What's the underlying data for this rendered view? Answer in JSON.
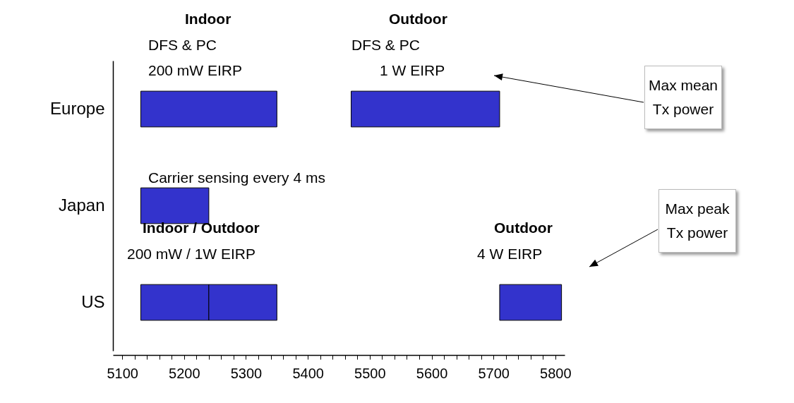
{
  "chart_data": {
    "type": "bar",
    "orientation": "horizontal",
    "categories": [
      "Europe",
      "Japan",
      "US"
    ],
    "series": [
      {
        "color": "#3333cc",
        "base": [
          5130,
          5130,
          5130
        ],
        "values": [
          220,
          110,
          110
        ]
      },
      {
        "color": "#3333cc",
        "base": [
          5470,
          null,
          5240
        ],
        "values": [
          240,
          null,
          110
        ]
      },
      {
        "color": "#3333cc",
        "base": [
          null,
          null,
          5710
        ],
        "values": [
          null,
          null,
          100
        ]
      }
    ],
    "xlim": [
      5085,
      5815
    ],
    "xticks": [
      5100,
      {
        "value": 5120,
        "label": null
      },
      {
        "value": 5140,
        "label": null
      },
      {
        "value": 5160,
        "label": null
      },
      {
        "value": 5180,
        "label": null
      },
      5200,
      {
        "value": 5220,
        "label": null
      },
      {
        "value": 5240,
        "label": null
      },
      {
        "value": 5260,
        "label": null
      },
      {
        "value": 5280,
        "label": null
      },
      5300,
      {
        "value": 5320,
        "label": null
      },
      {
        "value": 5340,
        "label": null
      },
      {
        "value": 5360,
        "label": null
      },
      {
        "value": 5380,
        "label": null
      },
      5400,
      {
        "value": 5420,
        "label": null
      },
      {
        "value": 5440,
        "label": null
      },
      {
        "value": 5460,
        "label": null
      },
      {
        "value": 5480,
        "label": null
      },
      5500,
      {
        "value": 5520,
        "label": null
      },
      {
        "value": 5540,
        "label": null
      },
      {
        "value": 5560,
        "label": null
      },
      {
        "value": 5580,
        "label": null
      },
      5600,
      {
        "value": 5620,
        "label": null
      },
      {
        "value": 5640,
        "label": null
      },
      {
        "value": 5660,
        "label": null
      },
      {
        "value": 5680,
        "label": null
      },
      5700,
      {
        "value": 5720,
        "label": null
      },
      {
        "value": 5740,
        "label": null
      },
      {
        "value": 5760,
        "label": null
      },
      {
        "value": 5780,
        "label": null
      },
      5800
    ],
    "annotations": [
      "Indoor",
      "DFS & PC",
      "200 mW EIRP",
      "Outdoor",
      "DFS & PC",
      "1 W EIRP",
      "Carrier sensing every 4 ms",
      "Indoor / Outdoor",
      "200 mW / 1W EIRP",
      "Outdoor",
      "4 W EIRP",
      "Max mean Tx power",
      "Max peak Tx power"
    ]
  }
}
